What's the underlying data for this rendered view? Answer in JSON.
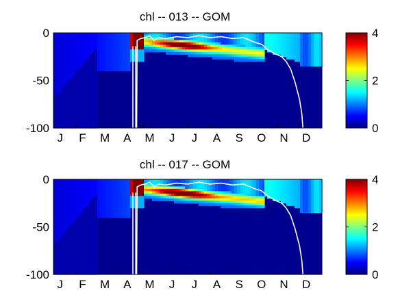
{
  "chart_data": [
    {
      "type": "heatmap",
      "title": "chl -- 013 -- GOM",
      "xlabel": "",
      "ylabel": "",
      "x_tick_labels": [
        "J",
        "F",
        "M",
        "A",
        "M",
        "J",
        "J",
        "A",
        "S",
        "O",
        "N",
        "D"
      ],
      "y_ticks": [
        0,
        -50,
        -100
      ],
      "ylim": [
        -100,
        0
      ],
      "xlim_months": [
        0,
        12
      ],
      "colorbar": {
        "ticks": [
          0,
          2,
          4
        ],
        "range": [
          0,
          4
        ],
        "colormap": "jet"
      },
      "bloom": {
        "start_month": 3.45,
        "peak_month": 3.8,
        "late_peak_month": 5.8
      },
      "white_lines": {
        "vertical_pair_months": [
          3.55,
          3.68
        ],
        "mixed_layer_depth": [
          {
            "m": 0,
            "d": -100
          },
          {
            "m": 3.55,
            "d": -100
          },
          {
            "m": 3.58,
            "d": -12
          },
          {
            "m": 3.68,
            "d": -12
          },
          {
            "m": 3.72,
            "d": -100
          },
          {
            "m": 3.74,
            "d": -8
          },
          {
            "m": 3.9,
            "d": -6
          },
          {
            "m": 4.1,
            "d": -5
          },
          {
            "m": 4.3,
            "d": -3
          },
          {
            "m": 4.5,
            "d": -8
          },
          {
            "m": 4.7,
            "d": -5
          },
          {
            "m": 5.0,
            "d": -6
          },
          {
            "m": 5.5,
            "d": -4
          },
          {
            "m": 6.0,
            "d": -5
          },
          {
            "m": 6.5,
            "d": -3
          },
          {
            "m": 7.0,
            "d": -5
          },
          {
            "m": 7.5,
            "d": -4
          },
          {
            "m": 8.0,
            "d": -6
          },
          {
            "m": 8.5,
            "d": -5
          },
          {
            "m": 9.0,
            "d": -10
          },
          {
            "m": 9.3,
            "d": -12
          },
          {
            "m": 9.6,
            "d": -18
          },
          {
            "m": 9.9,
            "d": -22
          },
          {
            "m": 10.2,
            "d": -25
          },
          {
            "m": 10.4,
            "d": -30
          },
          {
            "m": 10.6,
            "d": -38
          },
          {
            "m": 10.8,
            "d": -52
          },
          {
            "m": 11.0,
            "d": -70
          },
          {
            "m": 11.1,
            "d": -85
          },
          {
            "m": 11.15,
            "d": -100
          }
        ]
      }
    },
    {
      "type": "heatmap",
      "title": "chl -- 017 -- GOM",
      "xlabel": "",
      "ylabel": "",
      "x_tick_labels": [
        "J",
        "F",
        "M",
        "A",
        "M",
        "J",
        "J",
        "A",
        "S",
        "O",
        "N",
        "D"
      ],
      "y_ticks": [
        0,
        -50,
        -100
      ],
      "ylim": [
        -100,
        0
      ],
      "xlim_months": [
        0,
        12
      ],
      "colorbar": {
        "ticks": [
          0,
          2,
          4
        ],
        "range": [
          0,
          4
        ],
        "colormap": "jet"
      },
      "bloom": {
        "start_month": 3.45,
        "peak_month": 3.8,
        "late_peak_month": 5.8
      },
      "white_lines": {
        "vertical_pair_months": [
          3.55,
          3.68
        ],
        "mixed_layer_depth": [
          {
            "m": 0,
            "d": -100
          },
          {
            "m": 3.55,
            "d": -100
          },
          {
            "m": 3.58,
            "d": -12
          },
          {
            "m": 3.68,
            "d": -12
          },
          {
            "m": 3.72,
            "d": -100
          },
          {
            "m": 3.74,
            "d": -8
          },
          {
            "m": 3.9,
            "d": -6
          },
          {
            "m": 4.1,
            "d": -5
          },
          {
            "m": 4.3,
            "d": -3
          },
          {
            "m": 4.5,
            "d": -8
          },
          {
            "m": 4.7,
            "d": -5
          },
          {
            "m": 5.0,
            "d": -6
          },
          {
            "m": 5.5,
            "d": -4
          },
          {
            "m": 6.0,
            "d": -5
          },
          {
            "m": 6.5,
            "d": -3
          },
          {
            "m": 7.0,
            "d": -5
          },
          {
            "m": 7.5,
            "d": -4
          },
          {
            "m": 8.0,
            "d": -6
          },
          {
            "m": 8.5,
            "d": -5
          },
          {
            "m": 9.0,
            "d": -10
          },
          {
            "m": 9.3,
            "d": -12
          },
          {
            "m": 9.6,
            "d": -18
          },
          {
            "m": 9.9,
            "d": -22
          },
          {
            "m": 10.2,
            "d": -25
          },
          {
            "m": 10.4,
            "d": -30
          },
          {
            "m": 10.6,
            "d": -38
          },
          {
            "m": 10.8,
            "d": -52
          },
          {
            "m": 11.0,
            "d": -70
          },
          {
            "m": 11.1,
            "d": -85
          },
          {
            "m": 11.15,
            "d": -100
          }
        ]
      }
    }
  ]
}
